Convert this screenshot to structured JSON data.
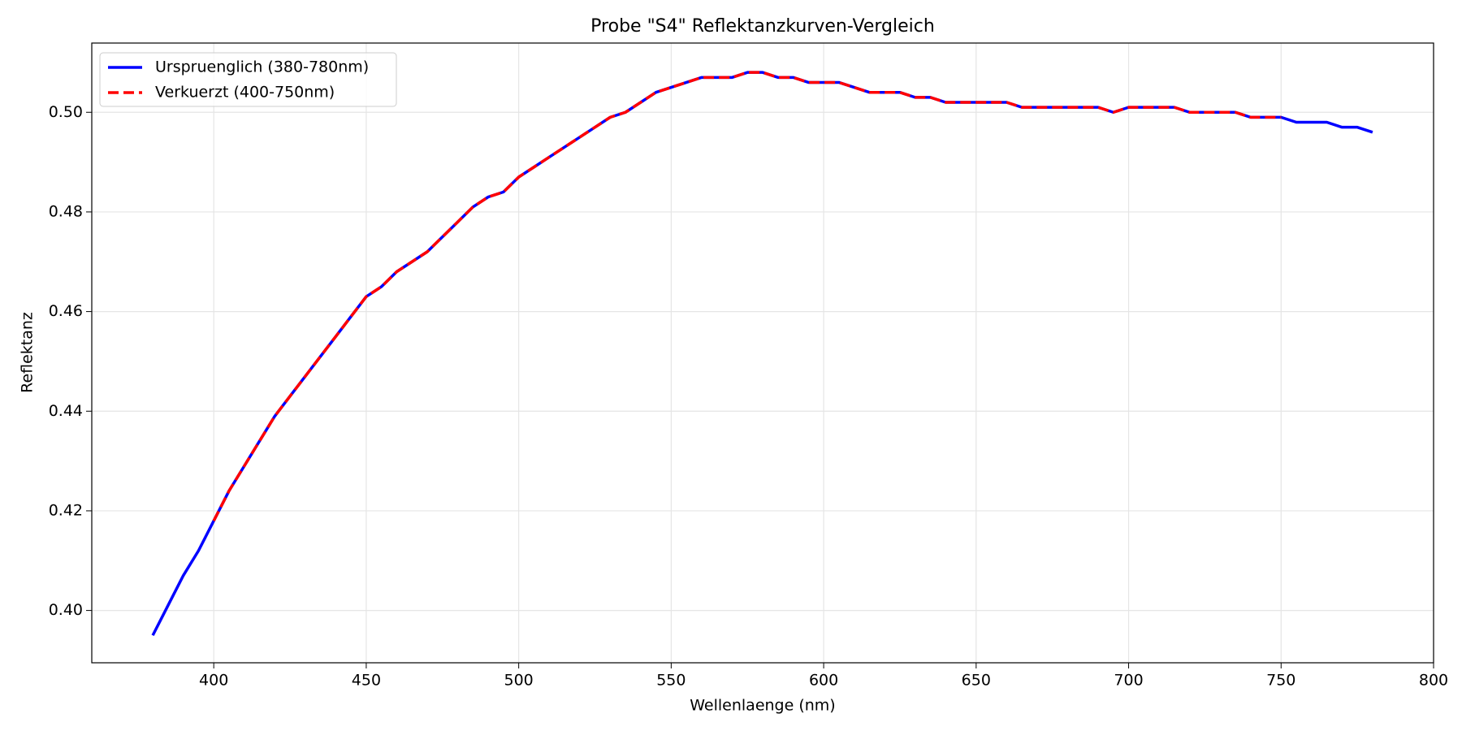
{
  "chart_data": {
    "type": "line",
    "title": "Probe \"S4\" Reflektanzkurven-Vergleich",
    "xlabel": "Wellenlaenge (nm)",
    "ylabel": "Reflektanz",
    "xlim": [
      360,
      800
    ],
    "ylim": [
      0.3895,
      0.5139
    ],
    "xticks": [
      400,
      450,
      500,
      550,
      600,
      650,
      700,
      750,
      800
    ],
    "yticks": [
      {
        "value": 0.4,
        "label": "0.40"
      },
      {
        "value": 0.42,
        "label": "0.42"
      },
      {
        "value": 0.44,
        "label": "0.44"
      },
      {
        "value": 0.46,
        "label": "0.46"
      },
      {
        "value": 0.48,
        "label": "0.48"
      },
      {
        "value": 0.5,
        "label": "0.50"
      }
    ],
    "grid": true,
    "legend": "upper left",
    "series": [
      {
        "name": "Urspruenglich (380-780nm)",
        "color": "#0000ff",
        "dash": "solid",
        "x": [
          380,
          385,
          390,
          395,
          400,
          405,
          410,
          415,
          420,
          425,
          430,
          435,
          440,
          445,
          450,
          455,
          460,
          465,
          470,
          475,
          480,
          485,
          490,
          495,
          500,
          505,
          510,
          515,
          520,
          525,
          530,
          535,
          540,
          545,
          550,
          555,
          560,
          565,
          570,
          575,
          580,
          585,
          590,
          595,
          600,
          605,
          610,
          615,
          620,
          625,
          630,
          635,
          640,
          645,
          650,
          655,
          660,
          665,
          670,
          675,
          680,
          685,
          690,
          695,
          700,
          705,
          710,
          715,
          720,
          725,
          730,
          735,
          740,
          745,
          750,
          755,
          760,
          765,
          770,
          775,
          780
        ],
        "values": [
          0.395,
          0.401,
          0.407,
          0.412,
          0.418,
          0.424,
          0.429,
          0.434,
          0.439,
          0.443,
          0.447,
          0.451,
          0.455,
          0.459,
          0.463,
          0.465,
          0.468,
          0.47,
          0.472,
          0.475,
          0.478,
          0.481,
          0.483,
          0.484,
          0.487,
          0.489,
          0.491,
          0.493,
          0.495,
          0.497,
          0.499,
          0.5,
          0.502,
          0.504,
          0.505,
          0.506,
          0.507,
          0.507,
          0.507,
          0.508,
          0.508,
          0.507,
          0.507,
          0.506,
          0.506,
          0.506,
          0.505,
          0.504,
          0.504,
          0.504,
          0.503,
          0.503,
          0.502,
          0.502,
          0.502,
          0.502,
          0.502,
          0.501,
          0.501,
          0.501,
          0.501,
          0.501,
          0.501,
          0.5,
          0.501,
          0.501,
          0.501,
          0.501,
          0.5,
          0.5,
          0.5,
          0.5,
          0.499,
          0.499,
          0.499,
          0.498,
          0.498,
          0.498,
          0.497,
          0.497,
          0.496
        ]
      },
      {
        "name": "Verkuerzt (400-750nm)",
        "color": "#ff0000",
        "dash": "dashed",
        "x": [
          400,
          405,
          410,
          415,
          420,
          425,
          430,
          435,
          440,
          445,
          450,
          455,
          460,
          465,
          470,
          475,
          480,
          485,
          490,
          495,
          500,
          505,
          510,
          515,
          520,
          525,
          530,
          535,
          540,
          545,
          550,
          555,
          560,
          565,
          570,
          575,
          580,
          585,
          590,
          595,
          600,
          605,
          610,
          615,
          620,
          625,
          630,
          635,
          640,
          645,
          650,
          655,
          660,
          665,
          670,
          675,
          680,
          685,
          690,
          695,
          700,
          705,
          710,
          715,
          720,
          725,
          730,
          735,
          740,
          745,
          750
        ],
        "values": [
          0.418,
          0.424,
          0.429,
          0.434,
          0.439,
          0.443,
          0.447,
          0.451,
          0.455,
          0.459,
          0.463,
          0.465,
          0.468,
          0.47,
          0.472,
          0.475,
          0.478,
          0.481,
          0.483,
          0.484,
          0.487,
          0.489,
          0.491,
          0.493,
          0.495,
          0.497,
          0.499,
          0.5,
          0.502,
          0.504,
          0.505,
          0.506,
          0.507,
          0.507,
          0.507,
          0.508,
          0.508,
          0.507,
          0.507,
          0.506,
          0.506,
          0.506,
          0.505,
          0.504,
          0.504,
          0.504,
          0.503,
          0.503,
          0.502,
          0.502,
          0.502,
          0.502,
          0.502,
          0.501,
          0.501,
          0.501,
          0.501,
          0.501,
          0.501,
          0.5,
          0.501,
          0.501,
          0.501,
          0.501,
          0.5,
          0.5,
          0.5,
          0.5,
          0.499,
          0.499,
          0.499
        ]
      }
    ]
  }
}
